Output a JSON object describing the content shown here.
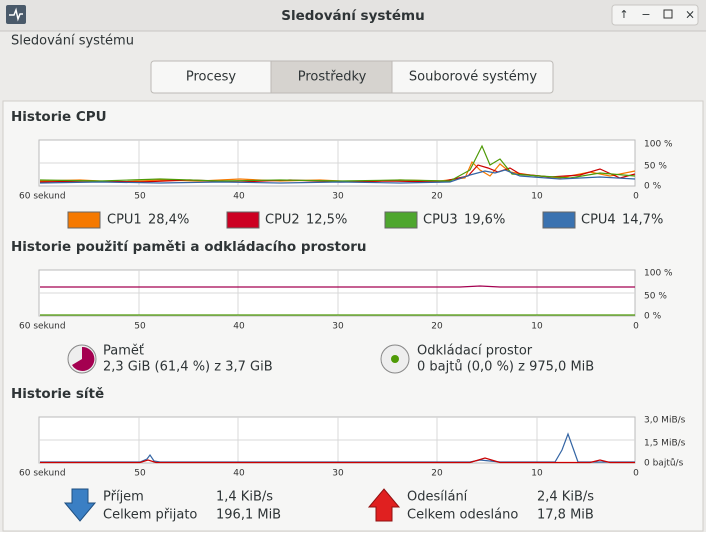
{
  "window": {
    "title": "Sledování systému"
  },
  "menu": {
    "label": "Sledování systému"
  },
  "tabs": [
    "Procesy",
    "Prostředky",
    "Souborové systémy"
  ],
  "cpu": {
    "title": "Historie CPU",
    "yticks": [
      "100 %",
      "50 %",
      "0 %"
    ],
    "xticks": [
      "60 sekund",
      "50",
      "40",
      "30",
      "20",
      "10",
      "0"
    ],
    "legend": [
      {
        "name": "CPU1",
        "value": "28,4%"
      },
      {
        "name": "CPU2",
        "value": "12,5%"
      },
      {
        "name": "CPU3",
        "value": "19,6%"
      },
      {
        "name": "CPU4",
        "value": "14,7%"
      }
    ]
  },
  "memory": {
    "title": "Historie použití paměti a odkládacího prostoru",
    "yticks": [
      "100 %",
      "50 %",
      "0 %"
    ],
    "xticks": [
      "60 sekund",
      "50",
      "40",
      "30",
      "20",
      "10",
      "0"
    ],
    "ram": {
      "name": "Paměť",
      "value": "2,3 GiB (61,4 %) z 3,7 GiB"
    },
    "swap": {
      "name": "Odkládací prostor",
      "value": "0 bajtů (0,0 %) z 975,0 MiB"
    }
  },
  "network": {
    "title": "Historie sítě",
    "yticks": [
      "3,0 MiB/s",
      "1,5 MiB/s",
      "0 bajtů/s"
    ],
    "xticks": [
      "60 sekund",
      "50",
      "40",
      "30",
      "20",
      "10",
      "0"
    ],
    "receive": {
      "name": "Příjem",
      "rate": "1,4 KiB/s",
      "total_label": "Celkem přijato",
      "total": "196,1 MiB"
    },
    "send": {
      "name": "Odesílání",
      "rate": "2,4 KiB/s",
      "total_label": "Celkem odesláno",
      "total": "17,8 MiB"
    }
  }
}
